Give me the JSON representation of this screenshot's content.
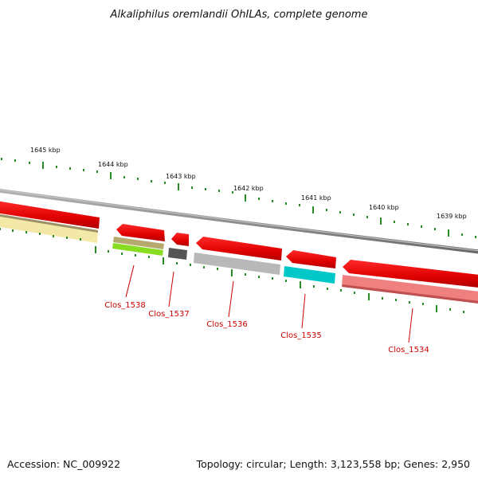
{
  "title": "Alkaliphilus oremlandii OhILAs, complete genome",
  "footer": {
    "accession": "Accession: NC_009922",
    "summary": "Topology: circular; Length: 3,123,558 bp; Genes: 2,950"
  },
  "ruler": {
    "labels": [
      "1645 kbp",
      "1644 kbp",
      "1643 kbp",
      "1642 kbp",
      "1641 kbp",
      "1640 kbp",
      "1639 kbp"
    ]
  },
  "genes": [
    {
      "id": "clos1538",
      "label": "Clos_1538",
      "top_color": "#ee0000",
      "bottom_colors": [
        "#b5a96e",
        "#88dd22"
      ]
    },
    {
      "id": "clos1537",
      "label": "Clos_1537",
      "top_color": "#ee0000",
      "bottom_colors": [
        "#555555"
      ]
    },
    {
      "id": "clos1536",
      "label": "Clos_1536",
      "top_color": "#ee0000",
      "bottom_colors": [
        "#b8b8b8"
      ]
    },
    {
      "id": "clos1535",
      "label": "Clos_1535",
      "top_color": "#ee0000",
      "bottom_colors": [
        "#00c8c8"
      ]
    },
    {
      "id": "clos1534",
      "label": "Clos_1534",
      "top_color": "#ee0000",
      "bottom_colors": [
        "#ee8080"
      ]
    }
  ],
  "colors": {
    "backbone": "#8a8a8a",
    "tick": "#2a8a2a",
    "cds_forward": "#ee0000",
    "label_line": "#cc0000"
  }
}
